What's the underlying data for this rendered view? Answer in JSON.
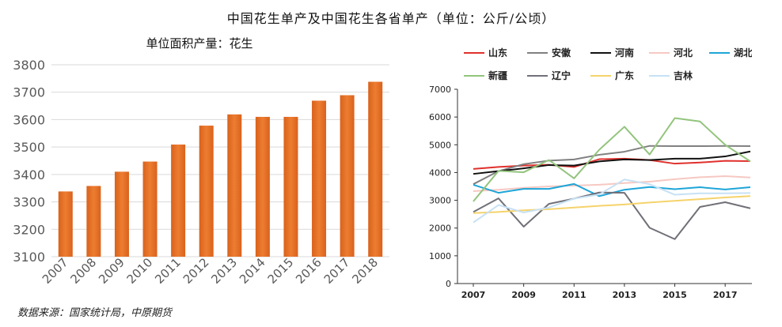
{
  "title": "中国花生单产及中国花生各省单产（单位：公斤/公顷）",
  "source": "数据来源：国家统计局，中原期货",
  "colors": {
    "bar": "#ed7d31",
    "bar_dark": "#d9621c",
    "grid": "#d9d9d9"
  },
  "chart_data": [
    {
      "type": "bar",
      "title": "单位面积产量：花生",
      "categories": [
        "2007",
        "2008",
        "2009",
        "2010",
        "2011",
        "2012",
        "2013",
        "2014",
        "2015",
        "2016",
        "2017",
        "2018"
      ],
      "values": [
        3338,
        3358,
        3410,
        3447,
        3509,
        3578,
        3619,
        3610,
        3610,
        3669,
        3689,
        3738
      ],
      "yticks": [
        3100,
        3200,
        3300,
        3400,
        3500,
        3600,
        3700,
        3800
      ],
      "ylim": [
        3100,
        3800
      ],
      "grid": true
    },
    {
      "type": "line",
      "x": [
        2007,
        2008,
        2009,
        2010,
        2011,
        2012,
        2013,
        2014,
        2015,
        2016,
        2017,
        2018
      ],
      "xticks": [
        "2007",
        "2009",
        "2011",
        "2013",
        "2015",
        "2017"
      ],
      "yticks": [
        "0",
        "1000",
        "2000",
        "3000",
        "4000",
        "5000",
        "6000",
        "7000"
      ],
      "ylim": [
        0,
        7000
      ],
      "grid": false,
      "legend": "top",
      "series": [
        {
          "name": "山东",
          "color": "#e0302c",
          "values": [
            4130,
            4200,
            4250,
            4280,
            4200,
            4480,
            4500,
            4450,
            4320,
            4360,
            4420,
            4410
          ]
        },
        {
          "name": "安徽",
          "color": "#808080",
          "values": [
            3580,
            4050,
            4300,
            4430,
            4470,
            4640,
            4750,
            4960,
            4950,
            4950,
            4960,
            4950
          ]
        },
        {
          "name": "河南",
          "color": "#111111",
          "values": [
            3950,
            4050,
            4150,
            4270,
            4250,
            4400,
            4470,
            4450,
            4500,
            4500,
            4580,
            4760
          ]
        },
        {
          "name": "河北",
          "color": "#f6c8c2",
          "values": [
            3330,
            3380,
            3450,
            3500,
            3530,
            3560,
            3620,
            3670,
            3760,
            3830,
            3870,
            3820
          ]
        },
        {
          "name": "湖北",
          "color": "#1da5d8",
          "values": [
            3560,
            3270,
            3410,
            3410,
            3590,
            3150,
            3380,
            3480,
            3400,
            3470,
            3390,
            3470
          ]
        },
        {
          "name": "新疆",
          "color": "#93c47d",
          "values": [
            2960,
            4060,
            4010,
            4450,
            3790,
            4820,
            5650,
            4650,
            5960,
            5840,
            5000,
            4400
          ]
        },
        {
          "name": "辽宁",
          "color": "#707078",
          "values": [
            2580,
            3070,
            2050,
            2870,
            3060,
            3280,
            3270,
            2010,
            1600,
            2760,
            2930,
            2710
          ]
        },
        {
          "name": "广东",
          "color": "#f5d36b",
          "values": [
            2540,
            2580,
            2640,
            2680,
            2740,
            2800,
            2850,
            2920,
            2980,
            3040,
            3100,
            3150
          ]
        },
        {
          "name": "吉林",
          "color": "#c7e1f5",
          "values": [
            2200,
            2830,
            2560,
            2740,
            3060,
            3210,
            3750,
            3580,
            3200,
            3250,
            3250,
            3260
          ]
        }
      ]
    }
  ]
}
